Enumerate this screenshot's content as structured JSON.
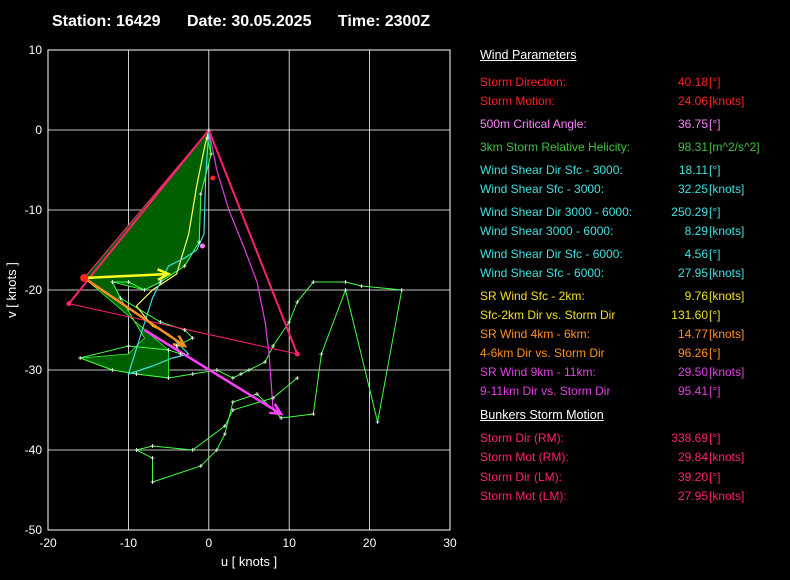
{
  "header": {
    "station": "Station: 16429",
    "date": "Date: 30.05.2025",
    "time": "Time: 2300Z"
  },
  "panel": {
    "wind_title": "Wind Parameters",
    "bunkers_title": "Bunkers Storm Motion",
    "groups": [
      [
        {
          "label": "Storm Direction:",
          "value": "40.18",
          "unit": "[°]",
          "color": "#ff2020"
        },
        {
          "label": "Storm Motion:",
          "value": "24.06",
          "unit": "[knots]",
          "color": "#ff2020"
        }
      ],
      [
        {
          "label": "500m Critical Angle:",
          "value": "36.75",
          "unit": "[°]",
          "color": "#ff80ff"
        }
      ],
      [
        {
          "label": "3km Storm Relative Helicity:",
          "value": "98.31",
          "unit": "[m^2/s^2]",
          "color": "#40c040"
        }
      ],
      [
        {
          "label": "Wind Shear Dir Sfc - 3000:",
          "value": "18.11",
          "unit": "[°]",
          "color": "#40e0e0"
        },
        {
          "label": "Wind Shear Sfc - 3000:",
          "value": "32.25",
          "unit": "[knots]",
          "color": "#40e0e0"
        }
      ],
      [
        {
          "label": "Wind Shear Dir 3000 - 6000:",
          "value": "250.29",
          "unit": "[°]",
          "color": "#40e0e0"
        },
        {
          "label": "Wind Shear 3000 - 6000:",
          "value": "8.29",
          "unit": "[knots]",
          "color": "#40e0e0"
        }
      ],
      [
        {
          "label": "Wind Shear Dir Sfc - 6000:",
          "value": "4.56",
          "unit": "[°]",
          "color": "#40e0e0"
        },
        {
          "label": "Wind Shear Sfc - 6000:",
          "value": "27.95",
          "unit": "[knots]",
          "color": "#40e0e0"
        }
      ],
      [
        {
          "label": "SR Wind Sfc - 2km:",
          "value": "9.76",
          "unit": "[knots]",
          "color": "#f0e020"
        },
        {
          "label": "Sfc-2km Dir vs. Storm Dir",
          "value": "131.60",
          "unit": "[°]",
          "color": "#f0e020"
        },
        {
          "label": "SR Wind 4km - 6km:",
          "value": "14.77",
          "unit": "[knots]",
          "color": "#ff9020"
        },
        {
          "label": "4-6km Dir vs. Storm Dir",
          "value": "96.26",
          "unit": "[°]",
          "color": "#ff9020"
        },
        {
          "label": "SR Wind 9km - 11km:",
          "value": "29.50",
          "unit": "[knots]",
          "color": "#e040e0"
        },
        {
          "label": "9-11km Dir vs. Storm Dir",
          "value": "95.41",
          "unit": "[°]",
          "color": "#e040e0"
        }
      ]
    ],
    "bunkers": [
      {
        "label": "Storm Dir (RM):",
        "value": "338.69",
        "unit": "[°]",
        "color": "#ff2070"
      },
      {
        "label": "Storm Mot (RM):",
        "value": "29.84",
        "unit": "[knots]",
        "color": "#ff2070"
      },
      {
        "label": "Storm Dir (LM):",
        "value": "39.20",
        "unit": "[°]",
        "color": "#ff2070"
      },
      {
        "label": "Storm Mot (LM):",
        "value": "27.95",
        "unit": "[knots]",
        "color": "#ff2070"
      }
    ]
  },
  "chart_data": {
    "type": "line",
    "xlabel": "u  [ knots ]",
    "ylabel": "v  [ knots ]",
    "xlim": [
      -20,
      30
    ],
    "ylim": [
      -50,
      10
    ],
    "xticks": [
      "-20",
      "-10",
      "0",
      "10",
      "20",
      "30"
    ],
    "yticks": [
      "10",
      "0",
      "-10",
      "-20",
      "-30",
      "-40",
      "-50"
    ],
    "grid": true,
    "colors": {
      "hodograph_full": "#40ff40",
      "hodograph_low": "#ffff60",
      "hodograph_mid": "#40e0e0",
      "hodograph_high": "#e040e0",
      "storm_motion": "#ff2070",
      "helicity_fill": "#006000",
      "sr_low": "#ffff20",
      "sr_mid": "#ff9020",
      "sr_high": "#ff40ff"
    },
    "hodograph_full": [
      [
        0,
        0
      ],
      [
        -0.2,
        -1
      ],
      [
        0.3,
        -3
      ],
      [
        -1,
        -8
      ],
      [
        -1.2,
        -14
      ],
      [
        -3,
        -17
      ],
      [
        -6,
        -19
      ],
      [
        -8,
        -20
      ],
      [
        -10,
        -19
      ],
      [
        -12,
        -19
      ],
      [
        -11,
        -21
      ],
      [
        -6,
        -24
      ],
      [
        -3,
        -25
      ],
      [
        -2,
        -26
      ],
      [
        -4,
        -27
      ],
      [
        -3.5,
        -28
      ],
      [
        -5,
        -27.5
      ],
      [
        -10,
        -27
      ],
      [
        -16,
        -28.5
      ],
      [
        -12,
        -30
      ],
      [
        -9,
        -30.5
      ],
      [
        -5,
        -31
      ],
      [
        -2,
        -30.5
      ],
      [
        1,
        -30
      ],
      [
        3,
        -31
      ],
      [
        4,
        -30.5
      ],
      [
        5,
        -30
      ],
      [
        7,
        -29
      ],
      [
        8,
        -27
      ],
      [
        10,
        -24
      ],
      [
        11,
        -21.5
      ],
      [
        13,
        -19
      ],
      [
        17,
        -19
      ],
      [
        19,
        -19.5
      ],
      [
        24,
        -20
      ],
      [
        21,
        -36.5
      ],
      [
        17,
        -20
      ],
      [
        14,
        -28
      ],
      [
        13,
        -35.5
      ],
      [
        9,
        -36
      ],
      [
        6,
        -33
      ],
      [
        3,
        -34
      ],
      [
        2,
        -38
      ],
      [
        1,
        -40
      ],
      [
        -1,
        -42
      ],
      [
        -7,
        -44
      ],
      [
        -7,
        -41
      ],
      [
        -9,
        -40
      ],
      [
        -7,
        -39.5
      ],
      [
        -2,
        -40
      ],
      [
        2,
        -37
      ],
      [
        3,
        -35
      ],
      [
        8,
        -33.5
      ],
      [
        11,
        -31
      ]
    ],
    "hodograph_low": [
      [
        0,
        0
      ],
      [
        -0.5,
        -2
      ],
      [
        -1.5,
        -7
      ],
      [
        -2.5,
        -13
      ],
      [
        -4,
        -18
      ],
      [
        -7,
        -20
      ],
      [
        -9,
        -22
      ],
      [
        -7,
        -24.5
      ],
      [
        -5,
        -25.5
      ]
    ],
    "hodograph_mid": [
      [
        -5,
        -25.5
      ],
      [
        -3.5,
        -27
      ],
      [
        -2.5,
        -28
      ],
      [
        -4.5,
        -28.5
      ],
      [
        -7,
        -29.5
      ],
      [
        -10,
        -30.5
      ],
      [
        -7,
        -21
      ],
      [
        -5,
        -17
      ],
      [
        -3,
        -16
      ],
      [
        -1.5,
        -15
      ],
      [
        -0.6,
        -13
      ],
      [
        -0.4,
        -6
      ],
      [
        0,
        0
      ]
    ],
    "hodograph_high": [
      [
        0,
        0
      ],
      [
        1,
        -5
      ],
      [
        2.5,
        -10
      ],
      [
        4.5,
        -15
      ],
      [
        6,
        -19
      ],
      [
        7,
        -24
      ],
      [
        7.5,
        -28
      ],
      [
        8,
        -35
      ]
    ],
    "helicity_polygon": [
      [
        0,
        0
      ],
      [
        0.3,
        -3
      ],
      [
        -1,
        -8
      ],
      [
        -1.2,
        -14
      ],
      [
        -3,
        -17
      ],
      [
        -6,
        -19
      ],
      [
        -8,
        -20
      ],
      [
        -12,
        -19
      ],
      [
        -11,
        -21
      ],
      [
        -8,
        -26
      ],
      [
        -10,
        -28
      ],
      [
        -16,
        -28.5
      ],
      [
        -12,
        -30
      ],
      [
        -9,
        -30.5
      ],
      [
        -5,
        -31
      ],
      [
        -5,
        -27.5
      ],
      [
        -15.5,
        -18.5
      ]
    ],
    "storm_points": {
      "rm": [
        0.5,
        -6
      ],
      "lm": [
        -17.4,
        -21.7
      ],
      "mean": [
        -15.5,
        -18.5
      ],
      "upper": [
        11,
        -28
      ],
      "mid_marker": [
        -0.8,
        -14.5
      ]
    },
    "storm_lines": [
      [
        [
          0,
          0
        ],
        [
          -17.4,
          -21.7
        ]
      ],
      [
        [
          0,
          0
        ],
        [
          11,
          -28
        ]
      ],
      [
        [
          -17.4,
          -21.7
        ],
        [
          11,
          -28
        ]
      ],
      [
        [
          0,
          0
        ],
        [
          -15.5,
          -18.5
        ]
      ]
    ],
    "sr_vectors": [
      {
        "from": [
          -15.5,
          -18.5
        ],
        "to": [
          -5,
          -18
        ],
        "color_key": "sr_low"
      },
      {
        "from": [
          -15.5,
          -18.5
        ],
        "to": [
          -3,
          -27
        ],
        "color_key": "sr_mid"
      },
      {
        "from": [
          -8,
          -25
        ],
        "to": [
          9,
          -35.5
        ],
        "color_key": "sr_high"
      }
    ]
  }
}
